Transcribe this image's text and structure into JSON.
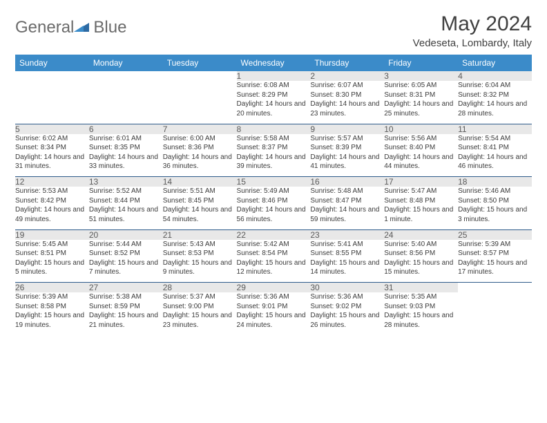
{
  "logo": {
    "text1": "General",
    "text2": "Blue"
  },
  "title": "May 2024",
  "subtitle": "Vedeseta, Lombardy, Italy",
  "header_bg": "#3b8bc9",
  "daynum_bg": "#e8e8e8",
  "border_color": "#2d5a8a",
  "days": [
    "Sunday",
    "Monday",
    "Tuesday",
    "Wednesday",
    "Thursday",
    "Friday",
    "Saturday"
  ],
  "weeks": [
    [
      null,
      null,
      null,
      {
        "n": "1",
        "sr": "6:08 AM",
        "ss": "8:29 PM",
        "dl": "14 hours and 20 minutes."
      },
      {
        "n": "2",
        "sr": "6:07 AM",
        "ss": "8:30 PM",
        "dl": "14 hours and 23 minutes."
      },
      {
        "n": "3",
        "sr": "6:05 AM",
        "ss": "8:31 PM",
        "dl": "14 hours and 25 minutes."
      },
      {
        "n": "4",
        "sr": "6:04 AM",
        "ss": "8:32 PM",
        "dl": "14 hours and 28 minutes."
      }
    ],
    [
      {
        "n": "5",
        "sr": "6:02 AM",
        "ss": "8:34 PM",
        "dl": "14 hours and 31 minutes."
      },
      {
        "n": "6",
        "sr": "6:01 AM",
        "ss": "8:35 PM",
        "dl": "14 hours and 33 minutes."
      },
      {
        "n": "7",
        "sr": "6:00 AM",
        "ss": "8:36 PM",
        "dl": "14 hours and 36 minutes."
      },
      {
        "n": "8",
        "sr": "5:58 AM",
        "ss": "8:37 PM",
        "dl": "14 hours and 39 minutes."
      },
      {
        "n": "9",
        "sr": "5:57 AM",
        "ss": "8:39 PM",
        "dl": "14 hours and 41 minutes."
      },
      {
        "n": "10",
        "sr": "5:56 AM",
        "ss": "8:40 PM",
        "dl": "14 hours and 44 minutes."
      },
      {
        "n": "11",
        "sr": "5:54 AM",
        "ss": "8:41 PM",
        "dl": "14 hours and 46 minutes."
      }
    ],
    [
      {
        "n": "12",
        "sr": "5:53 AM",
        "ss": "8:42 PM",
        "dl": "14 hours and 49 minutes."
      },
      {
        "n": "13",
        "sr": "5:52 AM",
        "ss": "8:44 PM",
        "dl": "14 hours and 51 minutes."
      },
      {
        "n": "14",
        "sr": "5:51 AM",
        "ss": "8:45 PM",
        "dl": "14 hours and 54 minutes."
      },
      {
        "n": "15",
        "sr": "5:49 AM",
        "ss": "8:46 PM",
        "dl": "14 hours and 56 minutes."
      },
      {
        "n": "16",
        "sr": "5:48 AM",
        "ss": "8:47 PM",
        "dl": "14 hours and 59 minutes."
      },
      {
        "n": "17",
        "sr": "5:47 AM",
        "ss": "8:48 PM",
        "dl": "15 hours and 1 minute."
      },
      {
        "n": "18",
        "sr": "5:46 AM",
        "ss": "8:50 PM",
        "dl": "15 hours and 3 minutes."
      }
    ],
    [
      {
        "n": "19",
        "sr": "5:45 AM",
        "ss": "8:51 PM",
        "dl": "15 hours and 5 minutes."
      },
      {
        "n": "20",
        "sr": "5:44 AM",
        "ss": "8:52 PM",
        "dl": "15 hours and 7 minutes."
      },
      {
        "n": "21",
        "sr": "5:43 AM",
        "ss": "8:53 PM",
        "dl": "15 hours and 9 minutes."
      },
      {
        "n": "22",
        "sr": "5:42 AM",
        "ss": "8:54 PM",
        "dl": "15 hours and 12 minutes."
      },
      {
        "n": "23",
        "sr": "5:41 AM",
        "ss": "8:55 PM",
        "dl": "15 hours and 14 minutes."
      },
      {
        "n": "24",
        "sr": "5:40 AM",
        "ss": "8:56 PM",
        "dl": "15 hours and 15 minutes."
      },
      {
        "n": "25",
        "sr": "5:39 AM",
        "ss": "8:57 PM",
        "dl": "15 hours and 17 minutes."
      }
    ],
    [
      {
        "n": "26",
        "sr": "5:39 AM",
        "ss": "8:58 PM",
        "dl": "15 hours and 19 minutes."
      },
      {
        "n": "27",
        "sr": "5:38 AM",
        "ss": "8:59 PM",
        "dl": "15 hours and 21 minutes."
      },
      {
        "n": "28",
        "sr": "5:37 AM",
        "ss": "9:00 PM",
        "dl": "15 hours and 23 minutes."
      },
      {
        "n": "29",
        "sr": "5:36 AM",
        "ss": "9:01 PM",
        "dl": "15 hours and 24 minutes."
      },
      {
        "n": "30",
        "sr": "5:36 AM",
        "ss": "9:02 PM",
        "dl": "15 hours and 26 minutes."
      },
      {
        "n": "31",
        "sr": "5:35 AM",
        "ss": "9:03 PM",
        "dl": "15 hours and 28 minutes."
      },
      null
    ]
  ],
  "labels": {
    "sunrise": "Sunrise:",
    "sunset": "Sunset:",
    "daylight": "Daylight:"
  }
}
